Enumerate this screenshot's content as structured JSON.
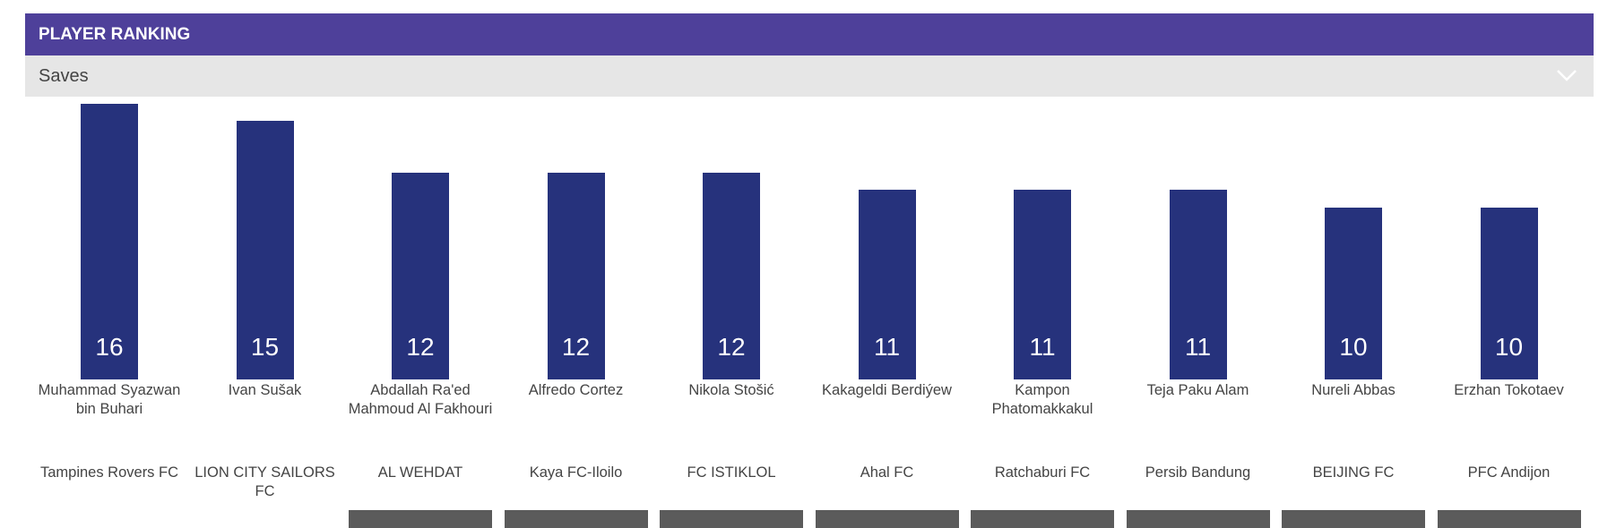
{
  "header": {
    "title": "PLAYER RANKING"
  },
  "selector": {
    "value": "Saves",
    "icon": "chevron-down-icon"
  },
  "colors": {
    "header": "#4e409a",
    "bar": "#26327c",
    "selector_bg": "#e6e6e6",
    "placeholder_bar": "#5b5b5b"
  },
  "chart_data": {
    "type": "bar",
    "title": "Saves",
    "ylim": [
      0,
      16
    ],
    "categories": [
      "Muhammad Syazwan bin Buhari",
      "Ivan Sušak",
      "Abdallah Ra'ed Mahmoud Al Fakhouri",
      "Alfredo Cortez",
      "Nikola Stošić",
      "Kakageldi Berdiýew",
      "Kampon Phatomakkakul",
      "Teja Paku Alam",
      "Nureli Abbas",
      "Erzhan Tokotaev"
    ],
    "teams": [
      "Tampines Rovers FC",
      "LION CITY SAILORS FC",
      "AL WEHDAT",
      "Kaya FC-Iloilo",
      "FC ISTIKLOL",
      "Ahal FC",
      "Ratchaburi FC",
      "Persib Bandung",
      "BEIJING FC",
      "PFC Andijon"
    ],
    "values": [
      16,
      15,
      12,
      12,
      12,
      11,
      11,
      11,
      10,
      10
    ],
    "placeholder_bar": [
      false,
      false,
      true,
      true,
      true,
      true,
      true,
      true,
      true,
      true
    ]
  }
}
